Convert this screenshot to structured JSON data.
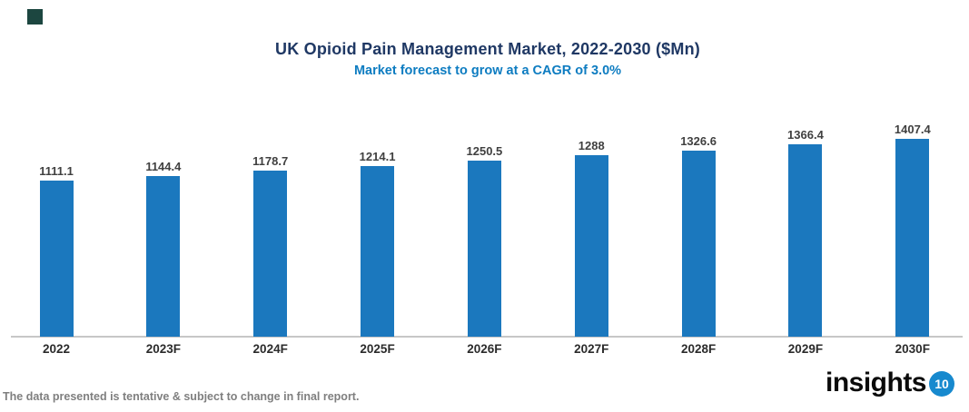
{
  "decor": {
    "corner_square_color": "#1c4640"
  },
  "header": {
    "title": "UK Opioid Pain Management Market, 2022-2030 ($Mn)",
    "subtitle": "Market forecast to grow at a CAGR of 3.0%",
    "title_color": "#1f3864",
    "subtitle_color": "#0d7cc1"
  },
  "chart_data": {
    "type": "bar",
    "title": "UK Opioid Pain Management Market, 2022-2030 ($Mn)",
    "subtitle": "Market forecast to grow at a CAGR of 3.0%",
    "categories": [
      "2022",
      "2023F",
      "2024F",
      "2025F",
      "2026F",
      "2027F",
      "2028F",
      "2029F",
      "2030F"
    ],
    "values": [
      1111.1,
      1144.4,
      1178.7,
      1214.1,
      1250.5,
      1288,
      1326.6,
      1366.4,
      1407.4
    ],
    "value_labels": [
      "1111.1",
      "1144.4",
      "1178.7",
      "1214.1",
      "1250.5",
      "1288",
      "1326.6",
      "1366.4",
      "1407.4"
    ],
    "xlabel": "",
    "ylabel": "",
    "ylim": [
      0,
      1500
    ],
    "grid": false,
    "legend_position": "none",
    "data_labels": true,
    "bar_color": "#1b78be",
    "axis_line_color": "#c7c7c7"
  },
  "footer": {
    "note": "The data presented is tentative & subject to change in final report.",
    "logo_text": "insights",
    "logo_badge": "10",
    "logo_badge_color": "#1789ce"
  }
}
